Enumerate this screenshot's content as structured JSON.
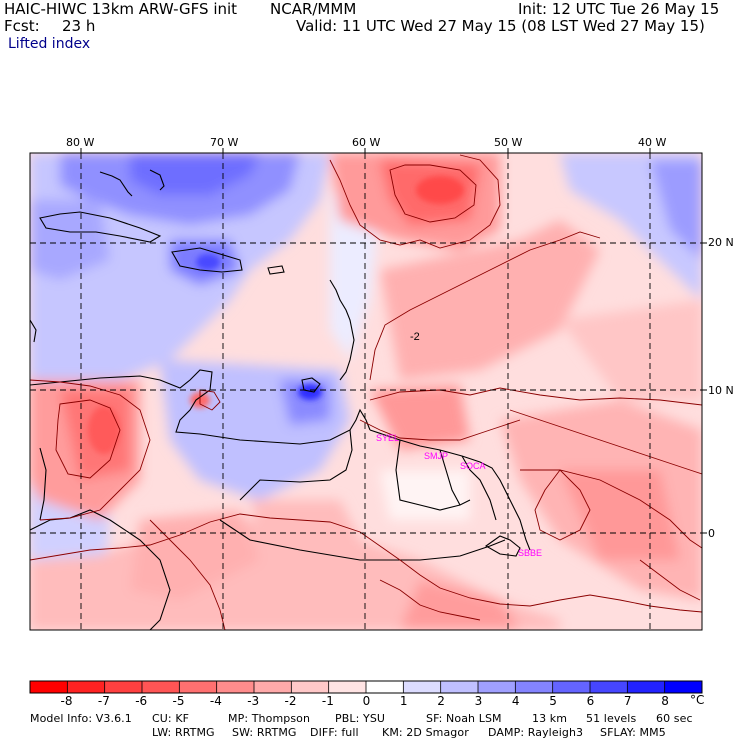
{
  "header": {
    "model": "HAIC-HIWC 13km ARW-GFS init",
    "org": "NCAR/MMM",
    "init": "Init: 12 UTC Tue 26 May 15",
    "fcst_label": "Fcst:",
    "fcst_value": "23 h",
    "valid": "Valid: 11 UTC Wed 27 May 15 (08 LST Wed 27 May 15)",
    "field": "Lifted index"
  },
  "map": {
    "lon_labels": [
      "80 W",
      "70 W",
      "60 W",
      "50 W",
      "40 W"
    ],
    "lat_labels": [
      "20 N",
      "10 N",
      "0"
    ],
    "stations": [
      "SYEL",
      "SMJP",
      "SOCA",
      "SBBE"
    ],
    "contour_label": "-2",
    "station_color": "#ff00ff"
  },
  "colorbar": {
    "labels": [
      "-8",
      "-7",
      "-6",
      "-5",
      "-4",
      "-3",
      "-2",
      "-1",
      "0",
      "1",
      "2",
      "3",
      "4",
      "5",
      "6",
      "7",
      "8"
    ],
    "unit": "°C",
    "colors": [
      "#ff0000",
      "#ff2222",
      "#ff4040",
      "#ff5555",
      "#ff7070",
      "#ff8c8c",
      "#ffaaaa",
      "#ffc8c8",
      "#ffe4e4",
      "#ffffff",
      "#dcdcff",
      "#c0c0ff",
      "#a0a0ff",
      "#8484ff",
      "#6464ff",
      "#4646ff",
      "#2222ff",
      "#0000ff"
    ]
  },
  "footer": {
    "line1": [
      "Model Info: V3.6.1",
      "CU: KF",
      "MP: Thompson",
      "PBL: YSU",
      "SF: Noah LSM",
      "13 km",
      "51 levels",
      "60 sec"
    ],
    "line2": [
      "LW: RRTMG",
      "SW: RRTMG",
      "DIFF: full",
      "KM: 2D Smagor",
      "DAMP: Rayleigh3",
      "SFLAY: MM5"
    ]
  }
}
